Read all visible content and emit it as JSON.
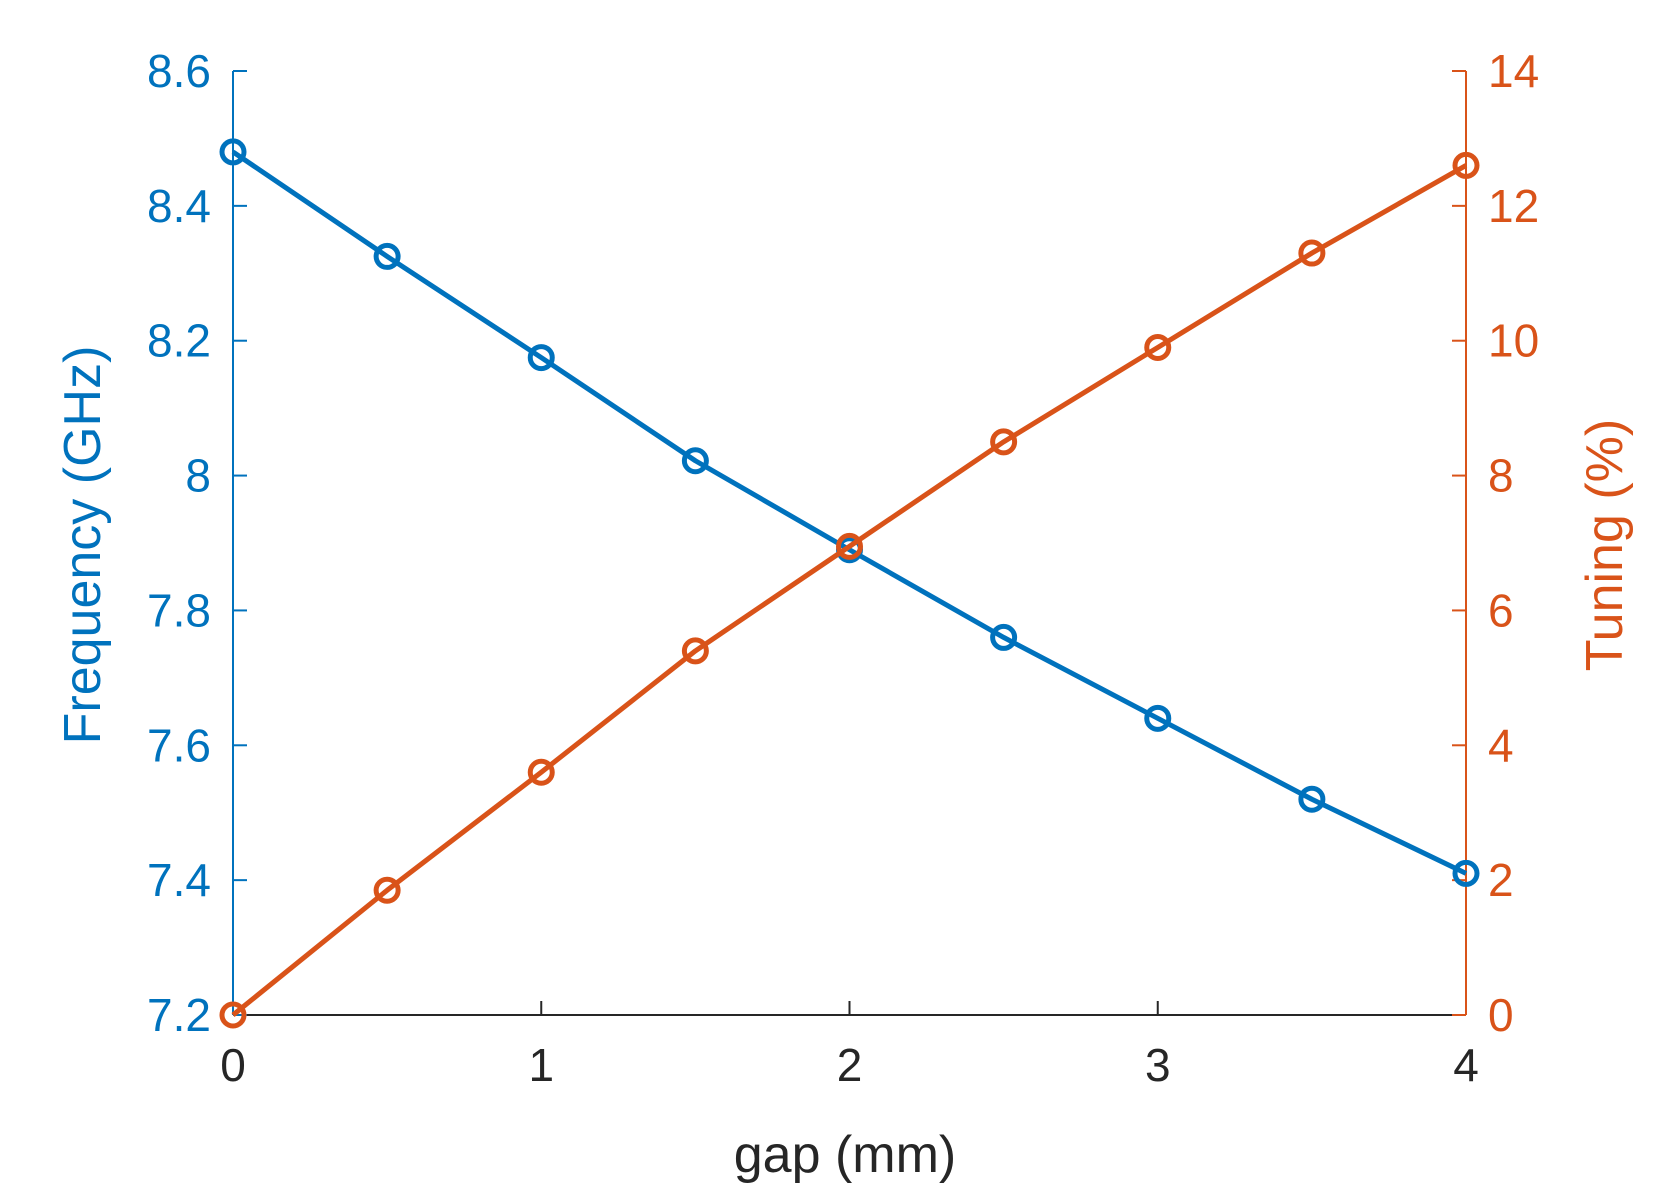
{
  "chart_data": {
    "type": "line",
    "xlabel": "gap (mm)",
    "ylabel_left": "Frequency (GHz)",
    "ylabel_right": "Tuning (%)",
    "xlim": [
      0,
      4
    ],
    "ylim_left": [
      7.2,
      8.6
    ],
    "ylim_right": [
      0,
      14
    ],
    "x_ticks": [
      "0",
      "1",
      "2",
      "3",
      "4"
    ],
    "y_left_ticks": [
      "7.2",
      "7.4",
      "7.6",
      "7.8",
      "8",
      "8.2",
      "8.4",
      "8.6"
    ],
    "y_right_ticks": [
      "0",
      "2",
      "4",
      "6",
      "8",
      "10",
      "12",
      "14"
    ],
    "grid": false,
    "x": [
      0,
      0.5,
      1,
      1.5,
      2,
      2.5,
      3,
      3.5,
      4
    ],
    "series": [
      {
        "axis": "left",
        "color": "#0072BD",
        "marker": "circle",
        "values": [
          8.48,
          8.325,
          8.175,
          8.022,
          7.89,
          7.76,
          7.64,
          7.52,
          7.41
        ]
      },
      {
        "axis": "right",
        "color": "#D95319",
        "marker": "circle",
        "values": [
          0,
          1.85,
          3.6,
          5.4,
          6.95,
          8.5,
          9.9,
          11.3,
          12.6
        ]
      }
    ],
    "colors": {
      "left_axis": "#0072BD",
      "right_axis": "#D95319",
      "x_axis": "#262626"
    }
  }
}
